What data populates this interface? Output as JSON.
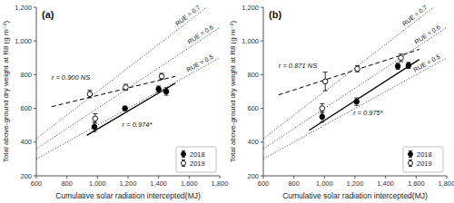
{
  "chart_data": [
    {
      "type": "scatter",
      "title": "(a)",
      "xlabel": "Cumulative solar radiation intercepted(MJ)",
      "ylabel": "Total above-ground dry weight at R8 (g m⁻²)",
      "xlim": [
        600,
        1800
      ],
      "ylim": [
        200,
        1200
      ],
      "xticks": [
        600,
        800,
        {
          "value": 1000,
          "label": "1,000"
        },
        {
          "value": 1200,
          "label": "1,200"
        },
        {
          "value": 1400,
          "label": "1,400"
        },
        {
          "value": 1600,
          "label": "1,600"
        },
        {
          "value": 1800,
          "label": "1,800"
        }
      ],
      "yticks": [
        200,
        400,
        600,
        800,
        {
          "value": 1000,
          "label": "1,000"
        },
        {
          "value": 1200,
          "label": "1,200"
        }
      ],
      "grid": false,
      "legend": "lower right",
      "series": [
        {
          "name": "2018",
          "type": "scatter",
          "marker": "filled",
          "color": "#000000",
          "x": [
            980,
            1180,
            1400,
            1450
          ],
          "values": [
            490,
            600,
            715,
            700
          ],
          "errors": [
            28,
            12,
            18,
            22
          ]
        },
        {
          "name": "2019",
          "type": "scatter",
          "marker": "open",
          "color": "#000000",
          "x": [
            950,
            985,
            1185,
            1420
          ],
          "values": [
            685,
            540,
            725,
            790
          ],
          "errors": [
            22,
            28,
            18,
            18
          ]
        },
        {
          "type": "line",
          "line_style": "solid",
          "color": "#000000",
          "x": [
            930,
            1510
          ],
          "values": [
            440,
            750
          ],
          "annotation": "r = 0.974*"
        },
        {
          "type": "line",
          "line_style": "dashed",
          "color": "#000000",
          "x": [
            700,
            1510
          ],
          "values": [
            610,
            790
          ],
          "annotation": "r = 0.900 NS"
        }
      ],
      "reference_lines": [
        {
          "slope": 0.7,
          "label": "RUE = 0.7",
          "line_style": "dotted"
        },
        {
          "slope": 0.6,
          "label": "RUE = 0.6",
          "line_style": "dotted"
        },
        {
          "slope": 0.5,
          "label": "RUE = 0.5",
          "line_style": "dotted"
        }
      ]
    },
    {
      "type": "scatter",
      "title": "(b)",
      "xlabel": "Cumulative solar radiation intercepted(MJ)",
      "ylabel": "Total above-ground dry weight at R8 (g m⁻²)",
      "xlim": [
        600,
        1800
      ],
      "ylim": [
        200,
        1200
      ],
      "xticks": [
        600,
        800,
        {
          "value": 1000,
          "label": "1,000"
        },
        {
          "value": 1200,
          "label": "1,200"
        },
        {
          "value": 1400,
          "label": "1,400"
        },
        {
          "value": 1600,
          "label": "1,600"
        },
        {
          "value": 1800,
          "label": "1,800"
        }
      ],
      "yticks": [
        200,
        400,
        600,
        800,
        {
          "value": 1000,
          "label": "1,000"
        },
        {
          "value": 1200,
          "label": "1,200"
        }
      ],
      "grid": false,
      "legend": "lower right",
      "series": [
        {
          "name": "2018",
          "type": "scatter",
          "marker": "filled",
          "color": "#000000",
          "x": [
            985,
            1210,
            1480,
            1550
          ],
          "values": [
            550,
            640,
            850,
            855
          ],
          "errors": [
            32,
            22,
            18,
            18
          ]
        },
        {
          "name": "2019",
          "type": "scatter",
          "marker": "open",
          "color": "#000000",
          "x": [
            985,
            1005,
            1215,
            1500
          ],
          "values": [
            600,
            760,
            835,
            900
          ],
          "errors": [
            28,
            55,
            18,
            22
          ]
        },
        {
          "type": "line",
          "line_style": "solid",
          "color": "#000000",
          "x": [
            900,
            1620
          ],
          "values": [
            470,
            890
          ],
          "annotation": "r = 0.975*"
        },
        {
          "type": "line",
          "line_style": "dashed",
          "color": "#000000",
          "x": [
            700,
            1620
          ],
          "values": [
            680,
            950
          ],
          "annotation": "r = 0.871 NS"
        }
      ],
      "reference_lines": [
        {
          "slope": 0.7,
          "label": "RUE = 0.7",
          "line_style": "dotted"
        },
        {
          "slope": 0.6,
          "label": "RUE = 0.6",
          "line_style": "dotted"
        },
        {
          "slope": 0.5,
          "label": "RUE = 0.5",
          "line_style": "dotted"
        }
      ]
    }
  ]
}
